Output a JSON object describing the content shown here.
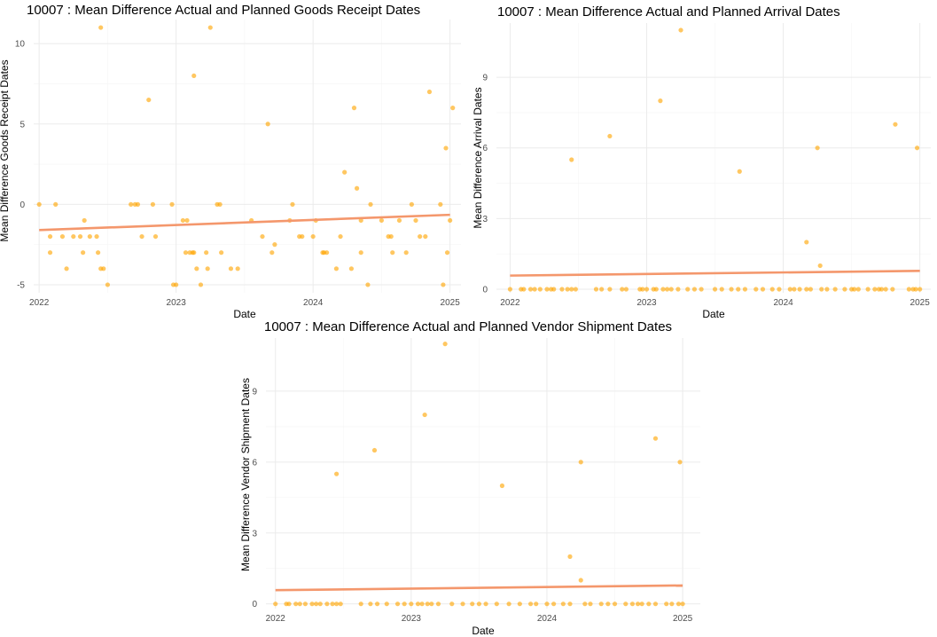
{
  "chart_data": [
    {
      "type": "scatter",
      "id": "goods",
      "title": "10007 : Mean Difference Actual and Planned Goods Receipt Dates",
      "xlabel": "Date",
      "ylabel": "Mean Difference Goods Receipt Dates",
      "x_ticks": [
        "2022",
        "2023",
        "2024",
        "2025"
      ],
      "y_ticks": [
        -5,
        0,
        5,
        10
      ],
      "xlim": [
        2021.96,
        2025.08
      ],
      "ylim": [
        -5.5,
        11.5
      ],
      "grid": true,
      "trend_line": {
        "x": [
          2022.0,
          2025.0
        ],
        "y": [
          -1.6,
          -0.65
        ]
      },
      "points": [
        [
          2022.0,
          0
        ],
        [
          2022.08,
          -3
        ],
        [
          2022.08,
          -2
        ],
        [
          2022.12,
          0
        ],
        [
          2022.17,
          -2
        ],
        [
          2022.2,
          -4
        ],
        [
          2022.25,
          -2
        ],
        [
          2022.3,
          -2
        ],
        [
          2022.32,
          -3
        ],
        [
          2022.33,
          -1
        ],
        [
          2022.37,
          -2
        ],
        [
          2022.42,
          -2
        ],
        [
          2022.43,
          -3
        ],
        [
          2022.45,
          -4
        ],
        [
          2022.47,
          -4
        ],
        [
          2022.5,
          -5
        ],
        [
          2022.45,
          11
        ],
        [
          2022.67,
          0
        ],
        [
          2022.7,
          0
        ],
        [
          2022.72,
          0
        ],
        [
          2022.75,
          -2
        ],
        [
          2022.8,
          6.5
        ],
        [
          2022.83,
          0
        ],
        [
          2022.85,
          -2
        ],
        [
          2022.97,
          0
        ],
        [
          2022.98,
          -5
        ],
        [
          2023.0,
          -5
        ],
        [
          2023.05,
          -1
        ],
        [
          2023.07,
          -3
        ],
        [
          2023.08,
          -1
        ],
        [
          2023.1,
          -3
        ],
        [
          2023.12,
          -3
        ],
        [
          2023.13,
          -3
        ],
        [
          2023.15,
          -4
        ],
        [
          2023.18,
          -5
        ],
        [
          2023.13,
          8
        ],
        [
          2023.22,
          -3
        ],
        [
          2023.23,
          -4
        ],
        [
          2023.25,
          11
        ],
        [
          2023.3,
          0
        ],
        [
          2023.32,
          0
        ],
        [
          2023.33,
          -3
        ],
        [
          2023.4,
          -4
        ],
        [
          2023.45,
          -4
        ],
        [
          2023.55,
          -1
        ],
        [
          2023.63,
          -2
        ],
        [
          2023.67,
          5
        ],
        [
          2023.7,
          -3
        ],
        [
          2023.72,
          -2.5
        ],
        [
          2023.83,
          -1
        ],
        [
          2023.85,
          0
        ],
        [
          2023.9,
          -2
        ],
        [
          2023.92,
          -2
        ],
        [
          2024.0,
          -2
        ],
        [
          2024.02,
          -1
        ],
        [
          2024.07,
          -3
        ],
        [
          2024.08,
          -3
        ],
        [
          2024.1,
          -3
        ],
        [
          2024.17,
          -4
        ],
        [
          2024.2,
          -2
        ],
        [
          2024.23,
          2
        ],
        [
          2024.28,
          -4
        ],
        [
          2024.3,
          6
        ],
        [
          2024.32,
          1
        ],
        [
          2024.35,
          -3
        ],
        [
          2024.35,
          -1
        ],
        [
          2024.4,
          -5
        ],
        [
          2024.42,
          0
        ],
        [
          2024.5,
          -1
        ],
        [
          2024.55,
          -2
        ],
        [
          2024.57,
          -2
        ],
        [
          2024.58,
          -3
        ],
        [
          2024.63,
          -1
        ],
        [
          2024.68,
          -3
        ],
        [
          2024.72,
          0
        ],
        [
          2024.75,
          -1
        ],
        [
          2024.78,
          -2
        ],
        [
          2024.82,
          -2
        ],
        [
          2024.85,
          7
        ],
        [
          2024.93,
          0
        ],
        [
          2024.95,
          -5
        ],
        [
          2024.97,
          3.5
        ],
        [
          2024.98,
          -3
        ],
        [
          2025.0,
          -1
        ],
        [
          2025.02,
          6
        ]
      ]
    },
    {
      "type": "scatter",
      "id": "arrival",
      "title": "10007 : Mean Difference Actual and Planned Arrival Dates",
      "xlabel": "Date",
      "ylabel": "Mean Difference Arrival Dates",
      "x_ticks": [
        "2022",
        "2023",
        "2024",
        "2025"
      ],
      "y_ticks": [
        0,
        3,
        6,
        9
      ],
      "xlim": [
        2021.9,
        2025.08
      ],
      "ylim": [
        -0.15,
        11.3
      ],
      "grid": true,
      "trend_line": {
        "x": [
          2022.0,
          2025.0
        ],
        "y": [
          0.58,
          0.78
        ]
      },
      "points": [
        [
          2022.0,
          0
        ],
        [
          2022.08,
          0
        ],
        [
          2022.1,
          0
        ],
        [
          2022.15,
          0
        ],
        [
          2022.18,
          0
        ],
        [
          2022.22,
          0
        ],
        [
          2022.27,
          0
        ],
        [
          2022.3,
          0
        ],
        [
          2022.32,
          0
        ],
        [
          2022.38,
          0
        ],
        [
          2022.42,
          0
        ],
        [
          2022.45,
          0
        ],
        [
          2022.48,
          0
        ],
        [
          2022.45,
          5.5
        ],
        [
          2022.63,
          0
        ],
        [
          2022.67,
          0
        ],
        [
          2022.73,
          0
        ],
        [
          2022.73,
          6.5
        ],
        [
          2022.82,
          0
        ],
        [
          2022.85,
          0
        ],
        [
          2022.95,
          0
        ],
        [
          2022.97,
          0
        ],
        [
          2023.0,
          0
        ],
        [
          2023.05,
          0
        ],
        [
          2023.07,
          0
        ],
        [
          2023.12,
          0
        ],
        [
          2023.1,
          8
        ],
        [
          2023.15,
          0
        ],
        [
          2023.18,
          0
        ],
        [
          2023.23,
          0
        ],
        [
          2023.25,
          11
        ],
        [
          2023.3,
          0
        ],
        [
          2023.35,
          0
        ],
        [
          2023.4,
          0
        ],
        [
          2023.5,
          0
        ],
        [
          2023.55,
          0
        ],
        [
          2023.62,
          0
        ],
        [
          2023.67,
          0
        ],
        [
          2023.68,
          5
        ],
        [
          2023.72,
          0
        ],
        [
          2023.8,
          0
        ],
        [
          2023.85,
          0
        ],
        [
          2023.92,
          0
        ],
        [
          2023.97,
          0
        ],
        [
          2024.05,
          0
        ],
        [
          2024.08,
          0
        ],
        [
          2024.12,
          0
        ],
        [
          2024.17,
          0
        ],
        [
          2024.2,
          0
        ],
        [
          2024.17,
          2
        ],
        [
          2024.25,
          6
        ],
        [
          2024.27,
          1
        ],
        [
          2024.28,
          0
        ],
        [
          2024.32,
          0
        ],
        [
          2024.38,
          0
        ],
        [
          2024.45,
          0
        ],
        [
          2024.5,
          0
        ],
        [
          2024.52,
          0
        ],
        [
          2024.55,
          0
        ],
        [
          2024.62,
          0
        ],
        [
          2024.67,
          0
        ],
        [
          2024.7,
          0
        ],
        [
          2024.72,
          0
        ],
        [
          2024.75,
          0
        ],
        [
          2024.8,
          0
        ],
        [
          2024.82,
          7
        ],
        [
          2024.92,
          0
        ],
        [
          2024.95,
          0
        ],
        [
          2024.97,
          0
        ],
        [
          2024.98,
          6
        ],
        [
          2025.0,
          0
        ]
      ]
    },
    {
      "type": "scatter",
      "id": "vendor",
      "title": "10007 : Mean Difference Actual and Planned Vendor Shipment Dates",
      "xlabel": "Date",
      "ylabel": "Mean Difference Vendor Shipment Dates",
      "x_ticks": [
        "2022",
        "2023",
        "2024",
        "2025"
      ],
      "y_ticks": [
        0,
        3,
        6,
        9
      ],
      "xlim": [
        2021.93,
        2025.13
      ],
      "ylim": [
        -0.2,
        11.25
      ],
      "grid": true,
      "trend_line": {
        "x": [
          2022.0,
          2025.0
        ],
        "y": [
          0.58,
          0.78
        ]
      },
      "points": [
        [
          2022.0,
          0
        ],
        [
          2022.08,
          0
        ],
        [
          2022.1,
          0
        ],
        [
          2022.15,
          0
        ],
        [
          2022.18,
          0
        ],
        [
          2022.22,
          0
        ],
        [
          2022.27,
          0
        ],
        [
          2022.3,
          0
        ],
        [
          2022.33,
          0
        ],
        [
          2022.38,
          0
        ],
        [
          2022.42,
          0
        ],
        [
          2022.45,
          0
        ],
        [
          2022.48,
          0
        ],
        [
          2022.45,
          5.5
        ],
        [
          2022.63,
          0
        ],
        [
          2022.7,
          0
        ],
        [
          2022.75,
          0
        ],
        [
          2022.73,
          6.5
        ],
        [
          2022.82,
          0
        ],
        [
          2022.9,
          0
        ],
        [
          2022.95,
          0
        ],
        [
          2023.0,
          0
        ],
        [
          2023.05,
          0
        ],
        [
          2023.08,
          0
        ],
        [
          2023.12,
          0
        ],
        [
          2023.1,
          8
        ],
        [
          2023.15,
          0
        ],
        [
          2023.2,
          0
        ],
        [
          2023.25,
          11
        ],
        [
          2023.3,
          0
        ],
        [
          2023.38,
          0
        ],
        [
          2023.45,
          0
        ],
        [
          2023.5,
          0
        ],
        [
          2023.55,
          0
        ],
        [
          2023.63,
          0
        ],
        [
          2023.67,
          5
        ],
        [
          2023.72,
          0
        ],
        [
          2023.8,
          0
        ],
        [
          2023.88,
          0
        ],
        [
          2023.92,
          0
        ],
        [
          2024.0,
          0
        ],
        [
          2024.05,
          0
        ],
        [
          2024.12,
          0
        ],
        [
          2024.17,
          0
        ],
        [
          2024.17,
          2
        ],
        [
          2024.25,
          6
        ],
        [
          2024.25,
          1
        ],
        [
          2024.28,
          0
        ],
        [
          2024.32,
          0
        ],
        [
          2024.4,
          0
        ],
        [
          2024.45,
          0
        ],
        [
          2024.5,
          0
        ],
        [
          2024.58,
          0
        ],
        [
          2024.63,
          0
        ],
        [
          2024.67,
          0
        ],
        [
          2024.7,
          0
        ],
        [
          2024.75,
          0
        ],
        [
          2024.8,
          0
        ],
        [
          2024.8,
          7
        ],
        [
          2024.88,
          0
        ],
        [
          2024.92,
          0
        ],
        [
          2024.97,
          0
        ],
        [
          2024.98,
          6
        ],
        [
          2025.0,
          0
        ]
      ]
    }
  ]
}
